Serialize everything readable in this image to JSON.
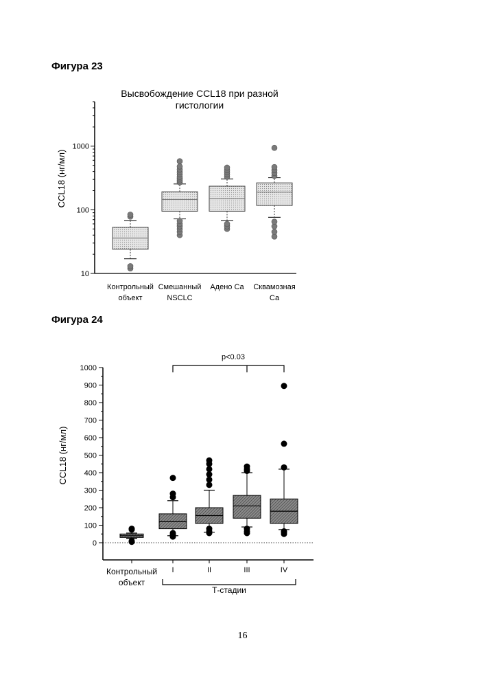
{
  "page": {
    "figure_labels": [
      "Фигура 23",
      "Фигура 24"
    ],
    "page_number": "16"
  },
  "chart_data": [
    {
      "type": "box",
      "title_lines": [
        "Высвобождение CCL18 при разной",
        "гистологии"
      ],
      "ylabel": "CCL18 (нг/мл)",
      "yscale": "log",
      "ylim": [
        10,
        5000
      ],
      "yticks": [
        10,
        100,
        1000
      ],
      "ytick_labels": [
        "10",
        "100",
        "1000"
      ],
      "categories": [
        [
          "Контрольный",
          "объект"
        ],
        [
          "Смешанный",
          "NSCLC"
        ],
        [
          "Адено Са"
        ],
        [
          "Сквамозная",
          "Са"
        ]
      ],
      "boxes": [
        {
          "whisker_low": 17,
          "q1": 24,
          "median": 36,
          "q3": 53,
          "whisker_high": 68,
          "outliers": [
            12,
            13,
            78,
            84
          ]
        },
        {
          "whisker_low": 72,
          "q1": 95,
          "median": 145,
          "q3": 192,
          "whisker_high": 255,
          "outliers": [
            40,
            45,
            50,
            55,
            60,
            67,
            270,
            290,
            310,
            330,
            360,
            390,
            430,
            480,
            580
          ]
        },
        {
          "whisker_low": 68,
          "q1": 95,
          "median": 150,
          "q3": 235,
          "whisker_high": 305,
          "outliers": [
            50,
            55,
            60,
            330,
            360,
            390,
            420,
            460
          ]
        },
        {
          "whisker_low": 76,
          "q1": 117,
          "median": 190,
          "q3": 265,
          "whisker_high": 320,
          "outliers": [
            38,
            45,
            55,
            65,
            340,
            380,
            420,
            470,
            940
          ]
        }
      ]
    },
    {
      "type": "box",
      "ylabel": "CCL18 (нг/мл)",
      "ylim": [
        -100,
        1000
      ],
      "yticks": [
        0,
        100,
        200,
        300,
        400,
        500,
        600,
        700,
        800,
        900,
        1000
      ],
      "ytick_labels": [
        "0",
        "100",
        "200",
        "300",
        "400",
        "500",
        "600",
        "700",
        "800",
        "900",
        "1000"
      ],
      "categories": [
        [
          "Контрольный",
          "объект"
        ],
        [
          "I"
        ],
        [
          "II"
        ],
        [
          "III"
        ],
        [
          "IV"
        ]
      ],
      "group_label": "Т-стадии",
      "significance": {
        "text": "p<0.03",
        "from_index": 1,
        "to_index": 3,
        "tick_indices": [
          1,
          3,
          4
        ]
      },
      "reference_line": 0,
      "boxes": [
        {
          "whisker_low": 25,
          "q1": 30,
          "median": 40,
          "q3": 50,
          "whisker_high": 55,
          "outliers": [
            5,
            10,
            75,
            80
          ]
        },
        {
          "whisker_low": 40,
          "q1": 80,
          "median": 120,
          "q3": 165,
          "whisker_high": 240,
          "outliers": [
            35,
            45,
            55,
            260,
            280,
            370
          ]
        },
        {
          "whisker_low": 60,
          "q1": 110,
          "median": 155,
          "q3": 200,
          "whisker_high": 300,
          "outliers": [
            55,
            65,
            80,
            330,
            360,
            390,
            420,
            450,
            470
          ]
        },
        {
          "whisker_low": 90,
          "q1": 140,
          "median": 210,
          "q3": 270,
          "whisker_high": 400,
          "outliers": [
            55,
            65,
            80,
            410,
            420,
            435
          ]
        },
        {
          "whisker_low": 75,
          "q1": 110,
          "median": 180,
          "q3": 250,
          "whisker_high": 420,
          "outliers": [
            50,
            60,
            65,
            430,
            565,
            895
          ]
        }
      ]
    }
  ]
}
